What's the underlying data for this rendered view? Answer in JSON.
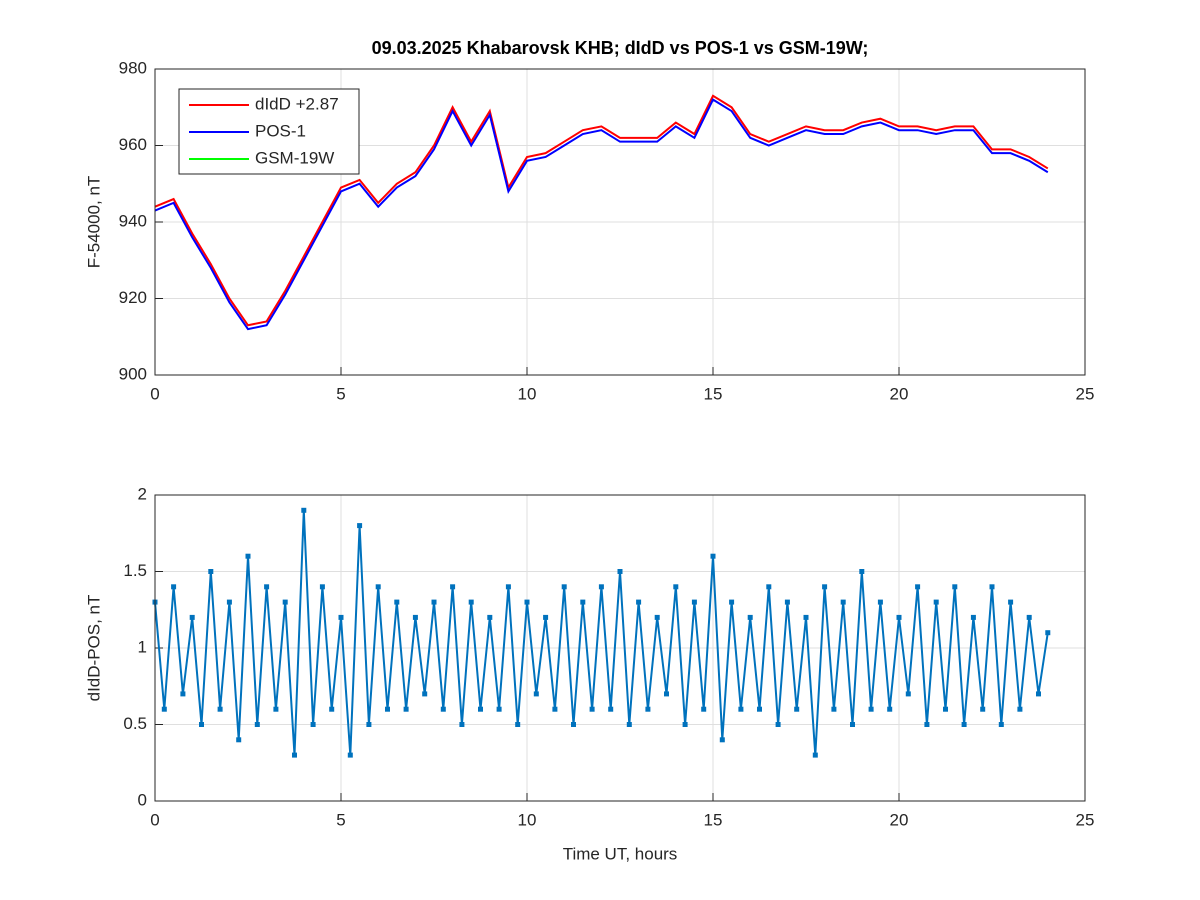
{
  "chart_data": [
    {
      "type": "line",
      "title": "09.03.2025  Khabarovsk KHB; dIdD vs POS-1 vs GSM-19W;",
      "ylabel": "F-54000, nT",
      "x": [
        0,
        0.5,
        1,
        1.5,
        2,
        2.5,
        3,
        3.5,
        4,
        4.5,
        5,
        5.5,
        6,
        6.5,
        7,
        7.5,
        8,
        8.5,
        9,
        9.5,
        10,
        10.5,
        11,
        11.5,
        12,
        12.5,
        13,
        13.5,
        14,
        14.5,
        15,
        15.5,
        16,
        16.5,
        17,
        17.5,
        18,
        18.5,
        19,
        19.5,
        20,
        20.5,
        21,
        21.5,
        22,
        22.5,
        23,
        23.5,
        24
      ],
      "series": [
        {
          "name": "dIdD +2.87",
          "color": "#ff0000",
          "values": [
            944,
            946,
            937,
            929,
            920,
            913,
            914,
            922,
            931,
            940,
            949,
            951,
            945,
            950,
            953,
            960,
            970,
            961,
            969,
            949,
            957,
            958,
            961,
            964,
            965,
            962,
            962,
            962,
            966,
            963,
            973,
            970,
            963,
            961,
            963,
            965,
            964,
            964,
            966,
            967,
            965,
            965,
            964,
            965,
            965,
            959,
            959,
            957,
            954
          ]
        },
        {
          "name": "POS-1",
          "color": "#0000ff",
          "values": [
            943,
            945,
            936,
            928,
            919,
            912,
            913,
            921,
            930,
            939,
            948,
            950,
            944,
            949,
            952,
            959,
            969,
            960,
            968,
            948,
            956,
            957,
            960,
            963,
            964,
            961,
            961,
            961,
            965,
            962,
            972,
            969,
            962,
            960,
            962,
            964,
            963,
            963,
            965,
            966,
            964,
            964,
            963,
            964,
            964,
            958,
            958,
            956,
            953
          ]
        },
        {
          "name": "GSM-19W",
          "color": "#00ff00",
          "values": [
            null,
            null,
            null,
            null,
            null,
            null,
            null,
            null,
            null,
            null,
            null,
            null,
            null,
            null,
            null,
            null,
            null,
            null,
            null,
            null,
            null,
            null,
            null,
            null,
            null,
            null,
            null,
            null,
            null,
            null,
            null,
            null,
            null,
            null,
            null,
            null,
            null,
            null,
            null,
            null,
            null,
            null,
            null,
            null,
            null,
            null,
            null,
            null,
            null
          ]
        }
      ],
      "xlim": [
        0,
        25
      ],
      "xticks": [
        0,
        5,
        10,
        15,
        20,
        25
      ],
      "ylim": [
        900,
        980
      ],
      "yticks": [
        900,
        920,
        940,
        960,
        980
      ],
      "grid": true,
      "legend": "northwest"
    },
    {
      "type": "line",
      "xlabel": "Time UT, hours",
      "ylabel": "dIdD-POS, nT",
      "x": [
        0,
        0.25,
        0.5,
        0.75,
        1,
        1.25,
        1.5,
        1.75,
        2,
        2.25,
        2.5,
        2.75,
        3,
        3.25,
        3.5,
        3.75,
        4,
        4.25,
        4.5,
        4.75,
        5,
        5.25,
        5.5,
        5.75,
        6,
        6.25,
        6.5,
        6.75,
        7,
        7.25,
        7.5,
        7.75,
        8,
        8.25,
        8.5,
        8.75,
        9,
        9.25,
        9.5,
        9.75,
        10,
        10.25,
        10.5,
        10.75,
        11,
        11.25,
        11.5,
        11.75,
        12,
        12.25,
        12.5,
        12.75,
        13,
        13.25,
        13.5,
        13.75,
        14,
        14.25,
        14.5,
        14.75,
        15,
        15.25,
        15.5,
        15.75,
        16,
        16.25,
        16.5,
        16.75,
        17,
        17.25,
        17.5,
        17.75,
        18,
        18.25,
        18.5,
        18.75,
        19,
        19.25,
        19.5,
        19.75,
        20,
        20.25,
        20.5,
        20.75,
        21,
        21.25,
        21.5,
        21.75,
        22,
        22.25,
        22.5,
        22.75,
        23,
        23.25,
        23.5,
        23.75,
        24
      ],
      "series": [
        {
          "name": "dIdD-POS",
          "color": "#0072bd",
          "marker": "square",
          "values": [
            1.3,
            0.6,
            1.4,
            0.7,
            1.2,
            0.5,
            1.5,
            0.6,
            1.3,
            0.4,
            1.6,
            0.5,
            1.4,
            0.6,
            1.3,
            0.3,
            1.9,
            0.5,
            1.4,
            0.6,
            1.2,
            0.3,
            1.8,
            0.5,
            1.4,
            0.6,
            1.3,
            0.6,
            1.2,
            0.7,
            1.3,
            0.6,
            1.4,
            0.5,
            1.3,
            0.6,
            1.2,
            0.6,
            1.4,
            0.5,
            1.3,
            0.7,
            1.2,
            0.6,
            1.4,
            0.5,
            1.3,
            0.6,
            1.4,
            0.6,
            1.5,
            0.5,
            1.3,
            0.6,
            1.2,
            0.7,
            1.4,
            0.5,
            1.3,
            0.6,
            1.6,
            0.4,
            1.3,
            0.6,
            1.2,
            0.6,
            1.4,
            0.5,
            1.3,
            0.6,
            1.2,
            0.3,
            1.4,
            0.6,
            1.3,
            0.5,
            1.5,
            0.6,
            1.3,
            0.6,
            1.2,
            0.7,
            1.4,
            0.5,
            1.3,
            0.6,
            1.4,
            0.5,
            1.2,
            0.6,
            1.4,
            0.5,
            1.3,
            0.6,
            1.2,
            0.7,
            1.1
          ]
        }
      ],
      "xlim": [
        0,
        25
      ],
      "xticks": [
        0,
        5,
        10,
        15,
        20,
        25
      ],
      "ylim": [
        0,
        2
      ],
      "yticks": [
        0,
        0.5,
        1,
        1.5,
        2
      ],
      "grid": true
    }
  ]
}
